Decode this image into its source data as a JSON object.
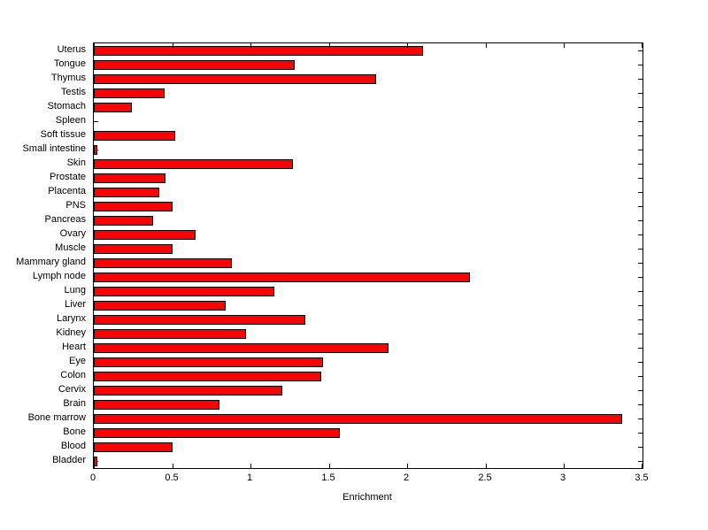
{
  "chart_data": {
    "type": "bar",
    "orientation": "horizontal",
    "title": "",
    "xlabel": "Enrichment",
    "ylabel": "",
    "xlim": [
      0,
      3.5
    ],
    "xticks": [
      0,
      0.5,
      1,
      1.5,
      2,
      2.5,
      3,
      3.5
    ],
    "xtick_labels": [
      "0",
      "0.5",
      "1",
      "1.5",
      "2",
      "2.5",
      "3",
      "3.5"
    ],
    "grid": false,
    "legend": false,
    "bar_color": "#ff0000",
    "bar_edge_color": "#000000",
    "axis_color": "#000000",
    "background_color": "#ffffff",
    "categories": [
      "Uterus",
      "Tongue",
      "Thymus",
      "Testis",
      "Stomach",
      "Spleen",
      "Soft tissue",
      "Small intestine",
      "Skin",
      "Prostate",
      "Placenta",
      "PNS",
      "Pancreas",
      "Ovary",
      "Muscle",
      "Mammary gland",
      "Lymph node",
      "Lung",
      "Liver",
      "Larynx",
      "Kidney",
      "Heart",
      "Eye",
      "Colon",
      "Cervix",
      "Brain",
      "Bone marrow",
      "Bone",
      "Blood",
      "Bladder"
    ],
    "values": [
      2.1,
      1.28,
      1.8,
      0.45,
      0.24,
      0,
      0.52,
      0.02,
      1.27,
      0.46,
      0.42,
      0.5,
      0.38,
      0.65,
      0.5,
      0.88,
      2.4,
      1.15,
      0.84,
      1.35,
      0.97,
      1.88,
      1.46,
      1.45,
      1.2,
      0.8,
      3.37,
      1.57,
      0.5,
      0.02
    ]
  }
}
